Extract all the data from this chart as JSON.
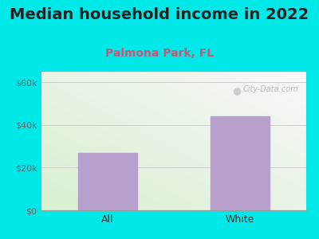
{
  "title": "Median household income in 2022",
  "subtitle": "Palmona Park, FL",
  "categories": [
    "All",
    "White"
  ],
  "values": [
    27000,
    44000
  ],
  "bar_color": "#b8a0cc",
  "title_color": "#222222",
  "subtitle_color": "#cc5577",
  "outer_bg_color": "#00e8e8",
  "yticks": [
    0,
    20000,
    40000,
    60000
  ],
  "ytick_labels": [
    "$0",
    "$20k",
    "$40k",
    "$60k"
  ],
  "ylim": [
    0,
    65000
  ],
  "watermark": "City-Data.com",
  "title_fontsize": 14,
  "subtitle_fontsize": 10,
  "tick_fontsize": 8,
  "xlabel_fontsize": 9
}
